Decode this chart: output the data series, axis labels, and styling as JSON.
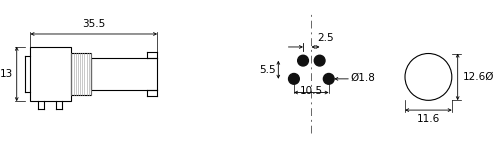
{
  "bg_color": "#ffffff",
  "lc": "#000000",
  "dim_35_5": "35.5",
  "dim_13": "13",
  "dim_10_5": "10.5",
  "dim_1_8": "Ø1.8",
  "dim_5_5": "5.5",
  "dim_2_5": "2.5",
  "dim_12_6": "12.6Ø",
  "dim_11_6": "11.6",
  "thread_color": "#aaaaaa",
  "dot_color": "#111111"
}
